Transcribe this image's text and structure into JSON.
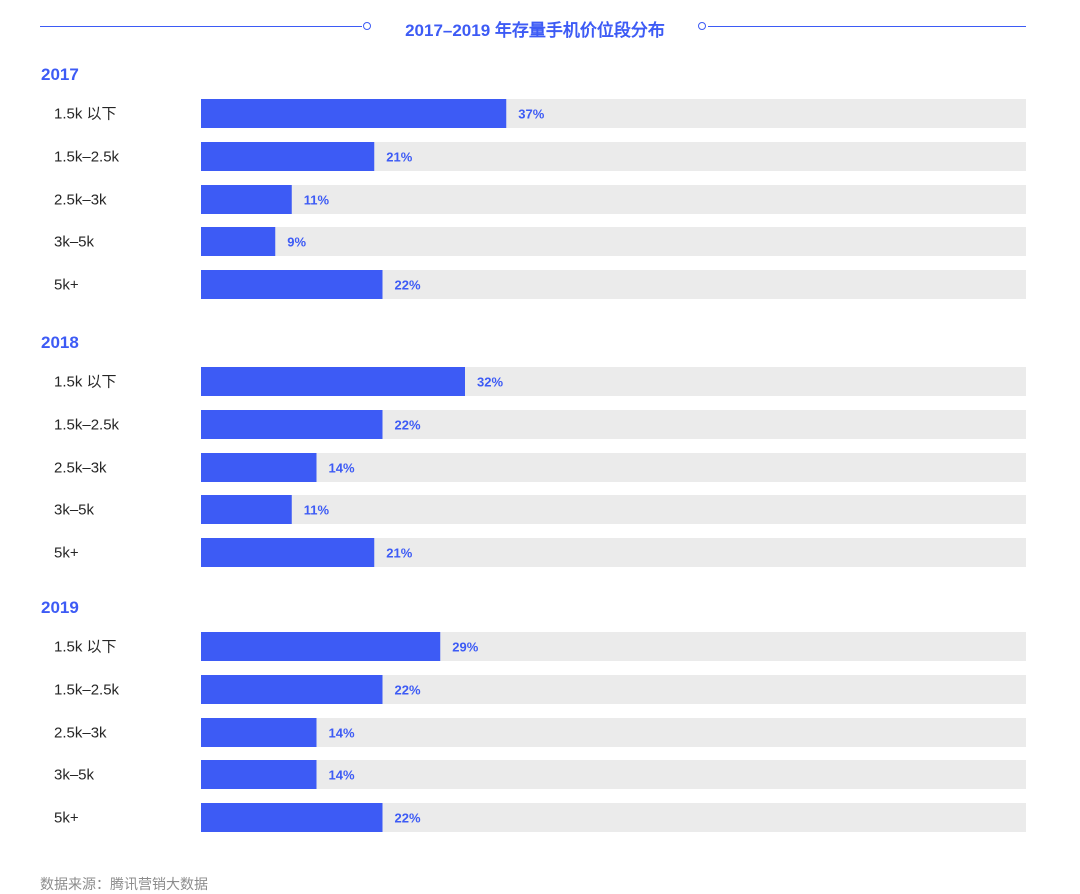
{
  "chart_data": {
    "type": "bar",
    "orientation": "horizontal",
    "title": "2017–2019 年存量手机价位段分布",
    "categories": [
      "1.5k 以下",
      "1.5k–2.5k",
      "2.5k–3k",
      "3k–5k",
      "5k+"
    ],
    "value_format": "{v}%",
    "xlim": [
      0,
      100
    ],
    "groups": [
      {
        "label": "2017",
        "values": [
          37,
          21,
          11,
          9,
          22
        ]
      },
      {
        "label": "2018",
        "values": [
          32,
          22,
          14,
          11,
          21
        ]
      },
      {
        "label": "2019",
        "values": [
          29,
          22,
          14,
          14,
          22
        ]
      }
    ],
    "colors": {
      "bar": "#3d5bf5",
      "track": "#ebebeb",
      "group_label": "#3d5bf5",
      "value_label": "#3d5bf5",
      "category_label": "#262626"
    }
  },
  "footer": {
    "source": "数据来源：腾讯营销大数据"
  }
}
